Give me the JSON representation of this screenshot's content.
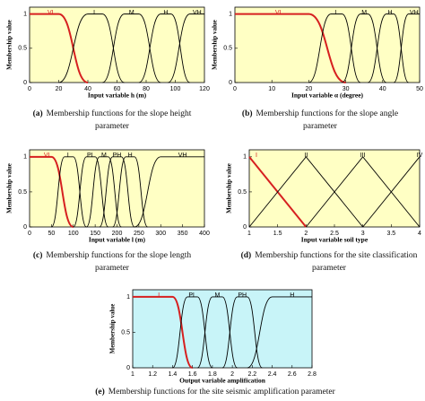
{
  "chart_data": [
    {
      "type": "line",
      "curve": "smooth",
      "background": "#ffffc4",
      "ylabel": "Membership value",
      "xlabel": "Input variable h (m)",
      "caption_label": "(a)",
      "caption": "Membership functions for the slope height parameter",
      "xlim": [
        0,
        120
      ],
      "xticks": [
        0,
        20,
        40,
        60,
        80,
        100,
        120
      ],
      "ylim": [
        0,
        1.1
      ],
      "yticks": [
        0,
        0.5,
        1
      ],
      "series": [
        {
          "name": "VL",
          "color": "#d62020",
          "x": [
            0,
            20,
            40
          ],
          "values": [
            1,
            1,
            0
          ]
        },
        {
          "name": "L",
          "color": "#000000",
          "x": [
            20,
            40,
            50,
            65
          ],
          "values": [
            0,
            1,
            1,
            0
          ]
        },
        {
          "name": "M",
          "color": "#000000",
          "x": [
            50,
            65,
            75,
            90
          ],
          "values": [
            0,
            1,
            1,
            0
          ]
        },
        {
          "name": "H",
          "color": "#000000",
          "x": [
            75,
            90,
            97,
            110
          ],
          "values": [
            0,
            1,
            1,
            0
          ]
        },
        {
          "name": "VH",
          "color": "#000000",
          "x": [
            95,
            110,
            120
          ],
          "values": [
            0,
            1,
            1
          ]
        }
      ]
    },
    {
      "type": "line",
      "curve": "smooth",
      "background": "#ffffc4",
      "ylabel": "Membership value",
      "xlabel": "Input variable α (degree)",
      "caption_label": "(b)",
      "caption": "Membership functions for the slope angle parameter",
      "xlim": [
        0,
        50
      ],
      "xticks": [
        0,
        10,
        20,
        30,
        40,
        50
      ],
      "ylim": [
        0,
        1.1
      ],
      "yticks": [
        0,
        0.5,
        1
      ],
      "series": [
        {
          "name": "VL",
          "color": "#d62020",
          "x": [
            0,
            20,
            30
          ],
          "values": [
            1,
            1,
            0
          ]
        },
        {
          "name": "L",
          "color": "#000000",
          "x": [
            20,
            26,
            29,
            34
          ],
          "values": [
            0,
            1,
            1,
            0
          ]
        },
        {
          "name": "M",
          "color": "#000000",
          "x": [
            29,
            34,
            36,
            41
          ],
          "values": [
            0,
            1,
            1,
            0
          ]
        },
        {
          "name": "H",
          "color": "#000000",
          "x": [
            36,
            41,
            43,
            47
          ],
          "values": [
            0,
            1,
            1,
            0
          ]
        },
        {
          "name": "VH",
          "color": "#000000",
          "x": [
            43,
            47,
            50
          ],
          "values": [
            0,
            1,
            1
          ]
        }
      ]
    },
    {
      "type": "line",
      "curve": "smooth",
      "background": "#ffffc4",
      "ylabel": "Membership value",
      "xlabel": "Input variable l (m)",
      "caption_label": "(c)",
      "caption": "Membership functions for the slope length parameter",
      "xlim": [
        0,
        400
      ],
      "xticks": [
        0,
        50,
        100,
        150,
        200,
        250,
        300,
        350,
        400
      ],
      "ylim": [
        0,
        1.1
      ],
      "yticks": [
        0,
        0.5,
        1
      ],
      "series": [
        {
          "name": "VL",
          "color": "#d62020",
          "x": [
            0,
            50,
            100
          ],
          "values": [
            1,
            1,
            0
          ]
        },
        {
          "name": "L",
          "color": "#000000",
          "x": [
            50,
            80,
            100,
            130
          ],
          "values": [
            0,
            1,
            1,
            0
          ]
        },
        {
          "name": "PL",
          "color": "#000000",
          "x": [
            100,
            130,
            150,
            180
          ],
          "values": [
            0,
            1,
            1,
            0
          ]
        },
        {
          "name": "M",
          "color": "#000000",
          "x": [
            130,
            160,
            180,
            210
          ],
          "values": [
            0,
            1,
            1,
            0
          ]
        },
        {
          "name": "PH",
          "color": "#000000",
          "x": [
            160,
            190,
            210,
            240
          ],
          "values": [
            0,
            1,
            1,
            0
          ]
        },
        {
          "name": "H",
          "color": "#000000",
          "x": [
            190,
            220,
            240,
            270
          ],
          "values": [
            0,
            1,
            1,
            0
          ]
        },
        {
          "name": "VH",
          "color": "#000000",
          "x": [
            240,
            300,
            400
          ],
          "values": [
            0,
            1,
            1
          ]
        }
      ]
    },
    {
      "type": "line",
      "curve": "linear",
      "background": "#ffffc4",
      "ylabel": "Membership value",
      "xlabel": "Input variable soil type",
      "caption_label": "(d)",
      "caption": "Membership functions for the site classification parameter",
      "xlim": [
        1,
        4
      ],
      "xticks": [
        1,
        1.5,
        2,
        2.5,
        3,
        3.5,
        4
      ],
      "ylim": [
        0,
        1.1
      ],
      "yticks": [
        0,
        0.5,
        1
      ],
      "series": [
        {
          "name": "I",
          "color": "#d62020",
          "x": [
            1,
            2
          ],
          "values": [
            1,
            0
          ]
        },
        {
          "name": "II",
          "color": "#000000",
          "x": [
            1,
            2,
            3
          ],
          "values": [
            0,
            1,
            0
          ]
        },
        {
          "name": "III",
          "color": "#000000",
          "x": [
            2,
            3,
            4
          ],
          "values": [
            0,
            1,
            0
          ]
        },
        {
          "name": "IV",
          "color": "#000000",
          "x": [
            3,
            4
          ],
          "values": [
            0,
            1
          ]
        }
      ]
    },
    {
      "type": "line",
      "curve": "smooth",
      "background": "#c8f4f8",
      "ylabel": "Membership value",
      "xlabel": "Output variable amplification",
      "caption_label": "(e)",
      "caption": "Membership functions for the site seismic amplification parameter",
      "xlim": [
        1,
        2.8
      ],
      "xticks": [
        1,
        1.2,
        1.4,
        1.6,
        1.8,
        2,
        2.2,
        2.4,
        2.6,
        2.8
      ],
      "ylim": [
        0,
        1.1
      ],
      "yticks": [
        0,
        0.5,
        1
      ],
      "series": [
        {
          "name": "L",
          "color": "#d62020",
          "x": [
            1,
            1.4,
            1.6
          ],
          "values": [
            1,
            1,
            0
          ]
        },
        {
          "name": "PL",
          "color": "#000000",
          "x": [
            1.4,
            1.55,
            1.65,
            1.8
          ],
          "values": [
            0,
            1,
            1,
            0
          ]
        },
        {
          "name": "M",
          "color": "#000000",
          "x": [
            1.65,
            1.8,
            1.9,
            2.05
          ],
          "values": [
            0,
            1,
            1,
            0
          ]
        },
        {
          "name": "PH",
          "color": "#000000",
          "x": [
            1.9,
            2.05,
            2.15,
            2.3
          ],
          "values": [
            0,
            1,
            1,
            0
          ]
        },
        {
          "name": "H",
          "color": "#000000",
          "x": [
            2.15,
            2.4,
            2.8
          ],
          "values": [
            0,
            1,
            1
          ]
        }
      ]
    }
  ]
}
